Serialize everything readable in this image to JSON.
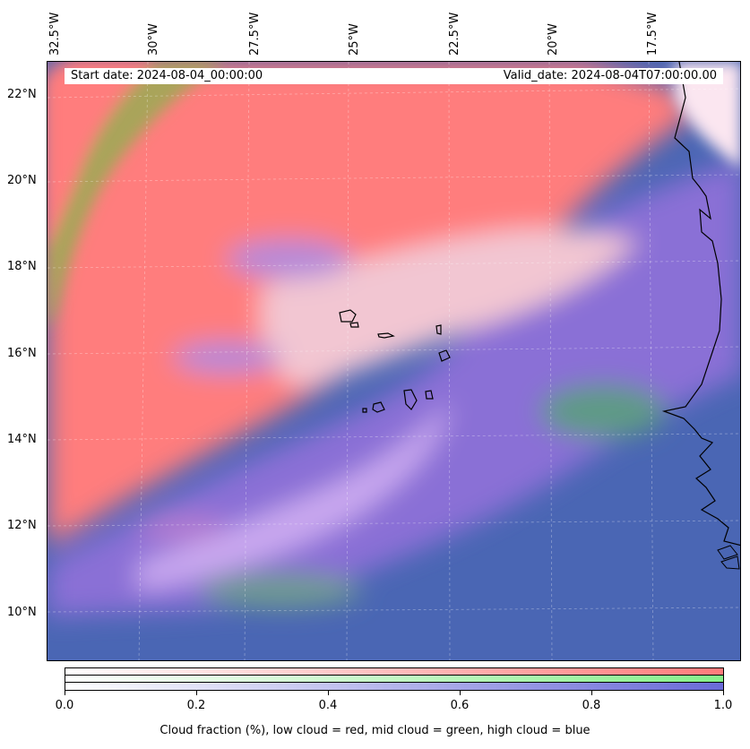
{
  "map": {
    "lon_ticks": [
      "32.5°W",
      "30°W",
      "27.5°W",
      "25°W",
      "22.5°W",
      "20°W",
      "17.5°W"
    ],
    "lat_ticks": [
      "22°N",
      "20°N",
      "18°N",
      "16°N",
      "14°N",
      "12°N",
      "10°N"
    ],
    "colors": {
      "low_cloud": "#ff7b7b",
      "mid_cloud": "#86f08a",
      "high_cloud": "#6a6ad8",
      "clear_dark": "#4a66b4",
      "border": "#000000"
    }
  },
  "info": {
    "start_date": "Start date: 2024-08-04_00:00:00",
    "valid_date": "Valid_date: 2024-08-04T07:00:00.00"
  },
  "colorbar": {
    "ticks": [
      "0.0",
      "0.2",
      "0.4",
      "0.6",
      "0.8",
      "1.0"
    ],
    "label": "Cloud fraction (%), low cloud = red, mid cloud = green, high cloud = blue"
  }
}
